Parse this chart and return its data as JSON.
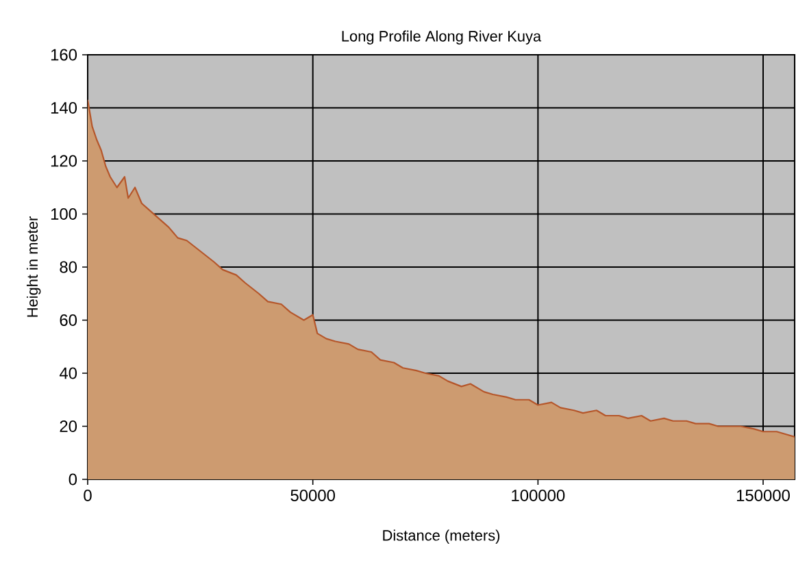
{
  "chart_data": {
    "type": "area",
    "title": "Long Profile Along River Kuya",
    "xlabel": "Distance (meters)",
    "ylabel": "Height in meter",
    "xlim": [
      0,
      157000
    ],
    "ylim": [
      0,
      160
    ],
    "xticks": [
      0,
      50000,
      100000,
      150000
    ],
    "yticks": [
      0,
      20,
      40,
      60,
      80,
      100,
      120,
      140,
      160
    ],
    "grid": true,
    "series": [
      {
        "color": "#b5562a",
        "x": [
          0,
          500,
          1000,
          2000,
          3000,
          4000,
          5000,
          6500,
          8200,
          9000,
          10500,
          12000,
          14000,
          16000,
          18000,
          20000,
          22000,
          25000,
          28000,
          30000,
          33000,
          35000,
          38000,
          40000,
          43000,
          45000,
          48000,
          50000,
          51000,
          53000,
          55000,
          58000,
          60000,
          63000,
          65000,
          68000,
          70000,
          73000,
          75000,
          78000,
          80000,
          83000,
          85000,
          88000,
          90000,
          93000,
          95000,
          98000,
          100000,
          103000,
          105000,
          108000,
          110000,
          113000,
          115000,
          118000,
          120000,
          123000,
          125000,
          128000,
          130000,
          133000,
          135000,
          138000,
          140000,
          143000,
          145000,
          148000,
          150000,
          153000,
          155000,
          157000
        ],
        "values": [
          143,
          138,
          133,
          128,
          124,
          118,
          114,
          110,
          114,
          106,
          110,
          104,
          101,
          98,
          95,
          91,
          90,
          86,
          82,
          79,
          77,
          74,
          70,
          67,
          66,
          63,
          60,
          62,
          55,
          53,
          52,
          51,
          49,
          48,
          45,
          44,
          42,
          41,
          40,
          39,
          37,
          35,
          36,
          33,
          32,
          31,
          30,
          30,
          28,
          29,
          27,
          26,
          25,
          26,
          24,
          24,
          23,
          24,
          22,
          23,
          22,
          22,
          21,
          21,
          20,
          20,
          20,
          19,
          18,
          18,
          17,
          16
        ]
      }
    ]
  }
}
